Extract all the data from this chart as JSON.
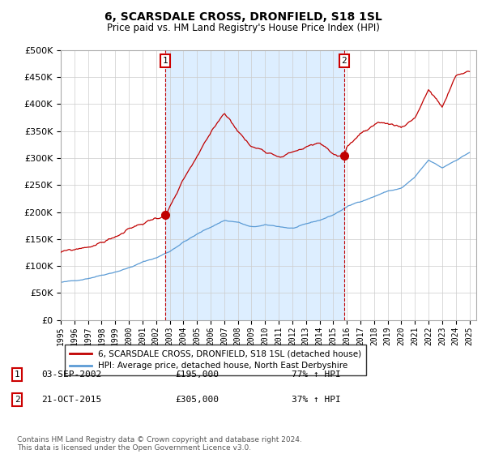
{
  "title": "6, SCARSDALE CROSS, DRONFIELD, S18 1SL",
  "subtitle": "Price paid vs. HM Land Registry's House Price Index (HPI)",
  "ytick_values": [
    0,
    50000,
    100000,
    150000,
    200000,
    250000,
    300000,
    350000,
    400000,
    450000,
    500000
  ],
  "ylim": [
    0,
    500000
  ],
  "xlim_start": 1995,
  "xlim_end": 2025.5,
  "hpi_color": "#5b9bd5",
  "price_color": "#c00000",
  "shade_color": "#ddeeff",
  "sale1_year": 2002.667,
  "sale1_price": 195000,
  "sale2_year": 2015.792,
  "sale2_price": 305000,
  "sale1_date": "03-SEP-2002",
  "sale1_price_str": "£195,000",
  "sale1_hpi": "77% ↑ HPI",
  "sale2_date": "21-OCT-2015",
  "sale2_price_str": "£305,000",
  "sale2_hpi": "37% ↑ HPI",
  "legend_label_red": "6, SCARSDALE CROSS, DRONFIELD, S18 1SL (detached house)",
  "legend_label_blue": "HPI: Average price, detached house, North East Derbyshire",
  "footer": "Contains HM Land Registry data © Crown copyright and database right 2024.\nThis data is licensed under the Open Government Licence v3.0.",
  "background_color": "#ffffff",
  "grid_color": "#cccccc",
  "title_fontsize": 10,
  "subtitle_fontsize": 8.5
}
